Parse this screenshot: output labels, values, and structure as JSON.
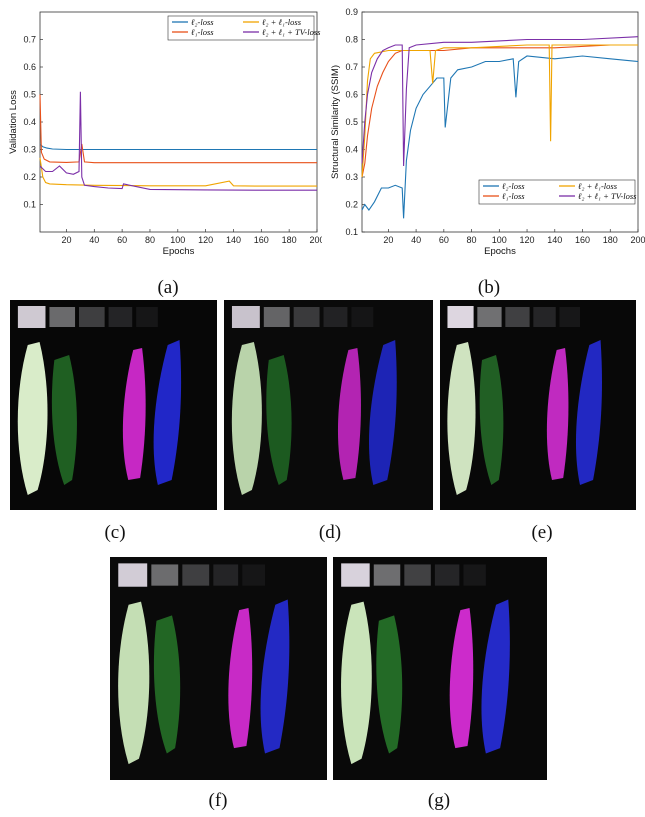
{
  "figure": {
    "labels": [
      "(a)",
      "(b)",
      "(c)",
      "(d)",
      "(e)",
      "(f)",
      "(g)"
    ]
  },
  "legend_entries": [
    "ℓ₂-loss",
    "ℓ₂ + ℓ₁-loss",
    "ℓ₁-loss",
    "ℓ₂ + ℓ₁ + TV-loss"
  ],
  "colors": {
    "l2": "#1f77b4",
    "l1": "#e8501a",
    "l2l1": "#f0a400",
    "l2l1tv": "#7b2fa8"
  },
  "chart_data": [
    {
      "type": "line",
      "title": "",
      "xlabel": "Epochs",
      "ylabel": "Validation Loss",
      "xlim": [
        1,
        200
      ],
      "ylim": [
        0,
        0.8
      ],
      "xticks": [
        20,
        40,
        60,
        80,
        100,
        120,
        140,
        160,
        180,
        200
      ],
      "yticks": [
        0.1,
        0.2,
        0.3,
        0.4,
        0.5,
        0.6,
        0.7
      ],
      "legend_position": "top-right",
      "series": [
        {
          "name": "ℓ₂-loss",
          "color": "#1f77b4",
          "x": [
            1,
            3,
            6,
            10,
            20,
            40,
            80,
            120,
            160,
            200
          ],
          "y": [
            0.32,
            0.31,
            0.305,
            0.302,
            0.3,
            0.3,
            0.3,
            0.3,
            0.3,
            0.3
          ]
        },
        {
          "name": "ℓ₁-loss",
          "color": "#e8501a",
          "x": [
            1,
            2,
            4,
            8,
            20,
            29,
            31,
            33,
            40,
            80,
            120,
            160,
            200
          ],
          "y": [
            0.5,
            0.29,
            0.265,
            0.255,
            0.253,
            0.255,
            0.32,
            0.255,
            0.252,
            0.252,
            0.252,
            0.252,
            0.252
          ]
        },
        {
          "name": "ℓ₂ + ℓ₁-loss",
          "color": "#f0a400",
          "x": [
            1,
            3,
            5,
            8,
            20,
            40,
            80,
            120,
            137,
            140,
            160,
            200
          ],
          "y": [
            0.27,
            0.2,
            0.18,
            0.175,
            0.172,
            0.17,
            0.168,
            0.168,
            0.185,
            0.168,
            0.167,
            0.167
          ]
        },
        {
          "name": "ℓ₂ + ℓ₁ + TV-loss",
          "color": "#7b2fa8",
          "x": [
            1,
            5,
            10,
            15,
            20,
            25,
            29,
            30,
            31,
            33,
            40,
            50,
            60,
            61,
            80,
            120,
            160,
            200
          ],
          "y": [
            0.24,
            0.22,
            0.22,
            0.24,
            0.215,
            0.21,
            0.22,
            0.51,
            0.2,
            0.17,
            0.165,
            0.16,
            0.158,
            0.175,
            0.155,
            0.153,
            0.152,
            0.152
          ]
        }
      ]
    },
    {
      "type": "line",
      "title": "",
      "xlabel": "Epochs",
      "ylabel": "Structural Similarity (SSIM)",
      "xlim": [
        1,
        200
      ],
      "ylim": [
        0.1,
        0.9
      ],
      "xticks": [
        20,
        40,
        60,
        80,
        100,
        120,
        140,
        160,
        180,
        200
      ],
      "yticks": [
        0.1,
        0.2,
        0.3,
        0.4,
        0.5,
        0.6,
        0.7,
        0.8,
        0.9
      ],
      "legend_position": "bottom-right",
      "series": [
        {
          "name": "ℓ₂-loss",
          "color": "#1f77b4",
          "x": [
            1,
            3,
            6,
            10,
            15,
            20,
            25,
            30,
            31,
            33,
            36,
            40,
            45,
            50,
            55,
            60,
            61,
            65,
            70,
            80,
            90,
            100,
            110,
            112,
            114,
            120,
            140,
            160,
            180,
            200
          ],
          "y": [
            0.18,
            0.2,
            0.18,
            0.21,
            0.26,
            0.26,
            0.27,
            0.26,
            0.15,
            0.36,
            0.47,
            0.55,
            0.6,
            0.63,
            0.66,
            0.66,
            0.48,
            0.66,
            0.69,
            0.7,
            0.72,
            0.72,
            0.73,
            0.59,
            0.72,
            0.74,
            0.73,
            0.74,
            0.73,
            0.72
          ]
        },
        {
          "name": "ℓ₁-loss",
          "color": "#e8501a",
          "x": [
            1,
            3,
            5,
            8,
            12,
            16,
            20,
            25,
            30,
            40,
            60,
            80,
            100,
            140,
            180,
            200
          ],
          "y": [
            0.3,
            0.35,
            0.45,
            0.55,
            0.63,
            0.68,
            0.72,
            0.75,
            0.76,
            0.76,
            0.76,
            0.77,
            0.77,
            0.77,
            0.78,
            0.78
          ]
        },
        {
          "name": "ℓ₂ + ℓ₁-loss",
          "color": "#f0a400",
          "x": [
            1,
            3,
            5,
            7,
            10,
            20,
            40,
            50,
            52,
            54,
            60,
            80,
            120,
            136,
            137,
            138,
            140,
            160,
            200
          ],
          "y": [
            0.3,
            0.45,
            0.65,
            0.73,
            0.75,
            0.76,
            0.76,
            0.76,
            0.64,
            0.76,
            0.77,
            0.77,
            0.78,
            0.78,
            0.43,
            0.78,
            0.78,
            0.78,
            0.78
          ]
        },
        {
          "name": "ℓ₂ + ℓ₁ + TV-loss",
          "color": "#7b2fa8",
          "x": [
            1,
            3,
            5,
            8,
            12,
            16,
            20,
            25,
            30,
            31,
            33,
            35,
            40,
            60,
            80,
            120,
            160,
            200
          ],
          "y": [
            0.35,
            0.5,
            0.6,
            0.68,
            0.73,
            0.76,
            0.77,
            0.78,
            0.78,
            0.34,
            0.62,
            0.77,
            0.78,
            0.79,
            0.79,
            0.8,
            0.8,
            0.81
          ]
        }
      ]
    }
  ]
}
